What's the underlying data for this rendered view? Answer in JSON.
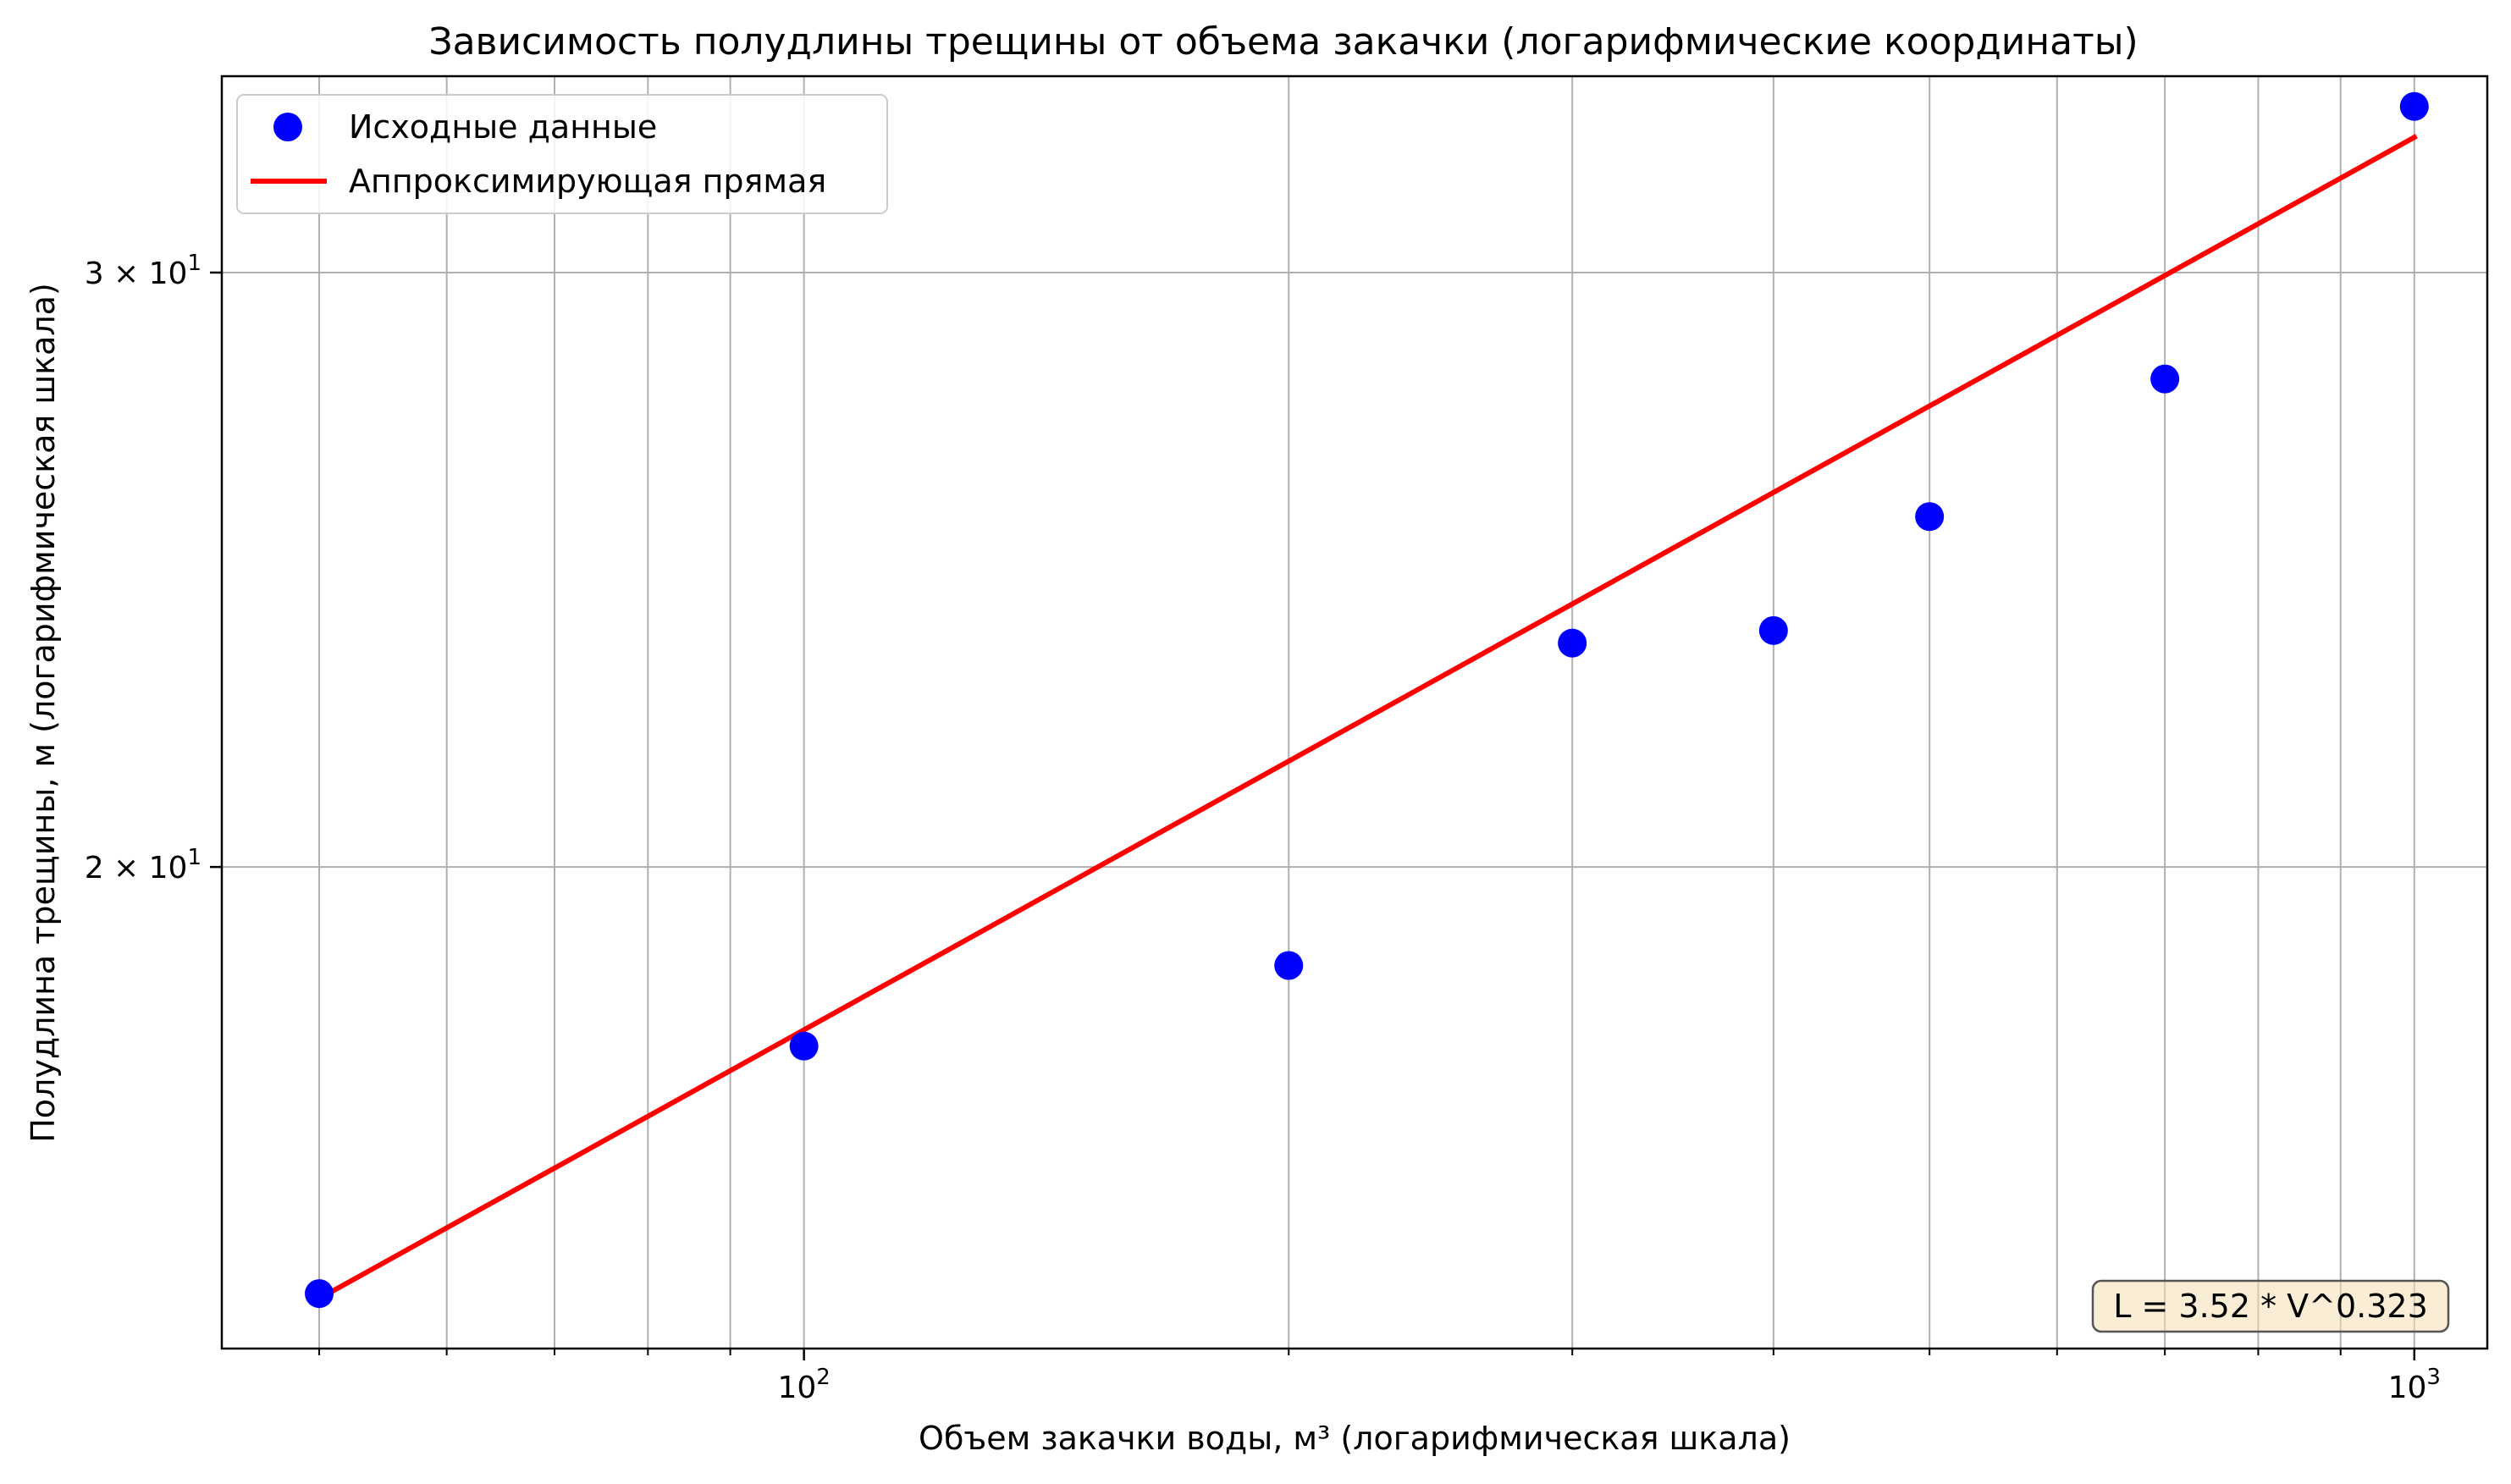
{
  "chart_data": {
    "type": "scatter",
    "title": "Зависимость полудлины трещины от объема закачки (логарифмические координаты)",
    "xlabel": "Объем закачки воды, м³ (логарифмическая шкала)",
    "ylabel": "Полудлина трещины, м (логарифмическая шкала)",
    "xscale": "log",
    "yscale": "log",
    "xlim": [
      43.5,
      1110
    ],
    "ylim": [
      14.4,
      34.3
    ],
    "grid": "on",
    "legend_position": "top-left",
    "x_ticks": [
      {
        "value": 100,
        "base": "10",
        "exp": "2"
      },
      {
        "value": 1000,
        "base": "10",
        "exp": "3"
      }
    ],
    "x_minor_ticks": [
      50,
      60,
      70,
      80,
      90,
      200,
      300,
      400,
      500,
      600,
      700,
      800,
      900
    ],
    "y_ticks": [
      {
        "value": 20,
        "prefix": "2 × ",
        "base": "10",
        "exp": "1"
      },
      {
        "value": 30,
        "prefix": "3 × ",
        "base": "10",
        "exp": "1"
      }
    ],
    "series": [
      {
        "name": "Исходные данные",
        "kind": "scatter",
        "color": "#0000ff",
        "x": [
          50,
          100,
          200,
          300,
          400,
          500,
          700,
          1000
        ],
        "y": [
          14.95,
          17.7,
          18.7,
          23.3,
          23.5,
          25.4,
          27.9,
          33.6
        ]
      },
      {
        "name": "Аппроксимирующая прямая",
        "kind": "line",
        "color": "#ff0000",
        "x": [
          50,
          1000
        ],
        "y": [
          14.9,
          32.9
        ]
      }
    ],
    "annotation": "L = 3.52 * V^0.323"
  }
}
